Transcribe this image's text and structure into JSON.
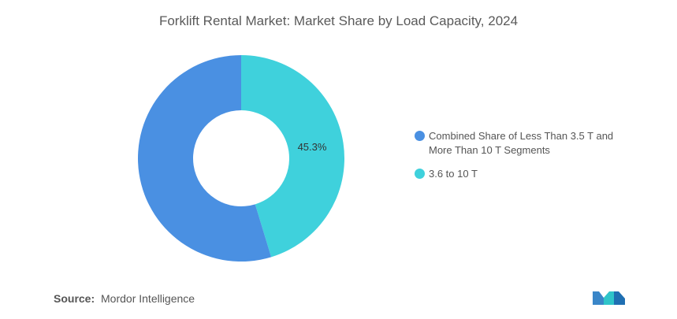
{
  "chart_data": {
    "type": "pie",
    "variant": "donut",
    "title": "Forklift Rental Market: Market Share by Load Capacity, 2024",
    "categories": [
      "Combined Share of Less Than 3.5 T and More Than 10 T Segments",
      "3.6 to 10 T"
    ],
    "values": [
      54.7,
      45.3
    ],
    "data_labels": [
      "",
      "45.3%"
    ],
    "colors": [
      "#4a90e2",
      "#3fd1dc"
    ],
    "legend_position": "right"
  },
  "legend": {
    "items": [
      {
        "label_line1": "Combined Share of Less Than 3.5 T and",
        "label_line2": "More Than 10 T Segments"
      },
      {
        "label_line1": "3.6 to 10 T",
        "label_line2": ""
      }
    ]
  },
  "source": {
    "label": "Source:",
    "text": "Mordor Intelligence"
  }
}
